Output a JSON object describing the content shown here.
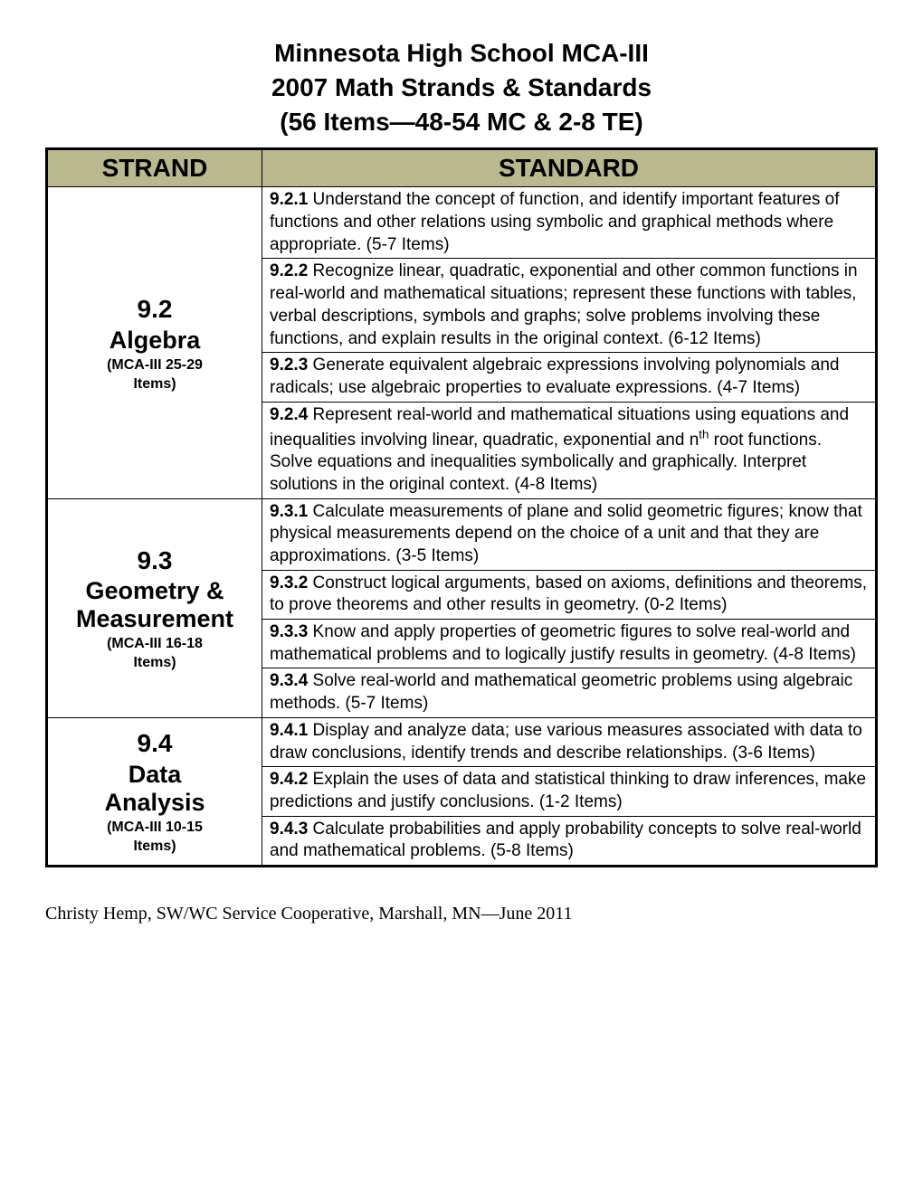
{
  "title": {
    "line1": "Minnesota High School MCA-III",
    "line2": "2007 Math Strands & Standards",
    "line3": "(56 Items—48-54 MC & 2-8 TE)"
  },
  "headers": {
    "strand": "STRAND",
    "standard": "STANDARD"
  },
  "strands": [
    {
      "num": "9.2",
      "name": "Algebra",
      "sub1": "(MCA-III 25-29",
      "sub2": "Items)",
      "standards": [
        {
          "code": "9.2.1",
          "text": " Understand the concept of function, and identify important features of functions and other relations using symbolic and graphical methods where appropriate.  (5-7 Items)"
        },
        {
          "code": "9.2.2",
          "text": " Recognize linear, quadratic, exponential and other common functions in real-world and mathematical situations; represent these functions with tables, verbal descriptions, symbols and graphs; solve problems involving these functions, and explain results in the original context. (6-12 Items)"
        },
        {
          "code": "9.2.3",
          "text": " Generate equivalent algebraic expressions involving polynomials and radicals; use algebraic properties to evaluate expressions. (4-7 Items)"
        },
        {
          "code": "9.2.4",
          "text_html": " Represent real-world and mathematical situations using equations and inequalities involving linear, quadratic, exponential and n<span class=\"sup\">th</span> root functions. Solve equations and inequalities symbolically and graphically. Interpret solutions in the original context. (4-8 Items)"
        }
      ]
    },
    {
      "num": "9.3",
      "name_html": "Geometry &<br>Measurement",
      "sub1": "(MCA-III 16-18",
      "sub2": "Items)",
      "standards": [
        {
          "code": "9.3.1",
          "text": " Calculate measurements of plane and solid geometric figures; know that physical measurements depend on the choice of a unit and that they are approximations. (3-5 Items)"
        },
        {
          "code": "9.3.2",
          "text": " Construct logical arguments, based on axioms, definitions and theorems, to prove theorems and other results in geometry. (0-2 Items)"
        },
        {
          "code": "9.3.3",
          "text": " Know and apply properties of geometric figures to solve real-world and mathematical problems and to logically justify results in geometry. (4-8 Items)"
        },
        {
          "code": "9.3.4",
          "text": " Solve real-world and mathematical geometric problems using algebraic methods. (5-7 Items)"
        }
      ]
    },
    {
      "num": "9.4",
      "name_html": "Data<br>Analysis",
      "sub1": "(MCA-III 10-15",
      "sub2": "Items)",
      "standards": [
        {
          "code": "9.4.1",
          "text": " Display and analyze data; use various measures associated with data to draw conclusions, identify trends and describe relationships. (3-6 Items)"
        },
        {
          "code": "9.4.2",
          "text": " Explain the uses of data and statistical thinking to draw inferences, make predictions and justify conclusions. (1-2 Items)"
        },
        {
          "code": "9.4.3",
          "text": " Calculate probabilities and apply probability concepts to solve real-world and mathematical problems. (5-8 Items)"
        }
      ]
    }
  ],
  "footer": "Christy Hemp, SW/WC Service Cooperative, Marshall, MN—June 2011",
  "styling": {
    "header_bg": "#bab88f",
    "border_color": "#000000",
    "body_font": "Comic Sans MS",
    "footer_font": "Times New Roman",
    "title_fontsize": 28,
    "th_fontsize": 28,
    "td_fontsize": 19,
    "strand_num_fontsize": 28,
    "strand_name_fontsize": 27,
    "strand_sub_fontsize": 16,
    "footer_fontsize": 20
  }
}
